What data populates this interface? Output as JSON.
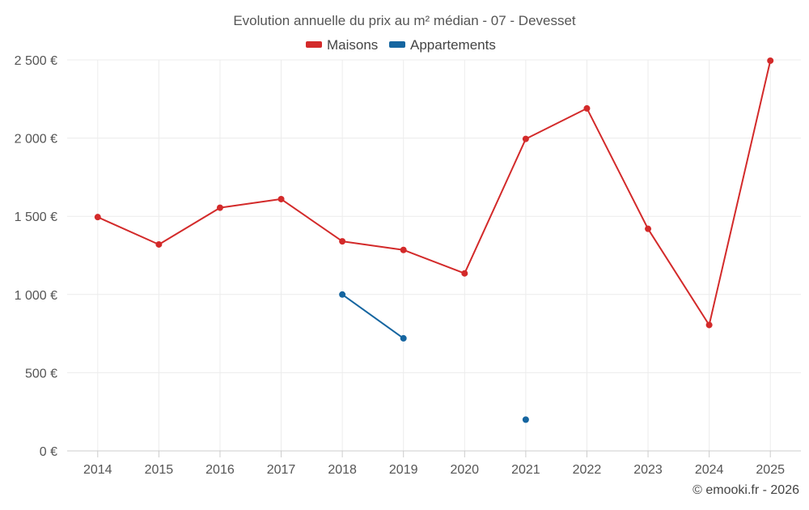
{
  "chart_data": {
    "type": "line",
    "title": "Evolution annuelle du prix au m² médian - 07 - Devesset",
    "categories": [
      "2014",
      "2015",
      "2016",
      "2017",
      "2018",
      "2019",
      "2020",
      "2021",
      "2022",
      "2023",
      "2024",
      "2025"
    ],
    "series": [
      {
        "name": "Maisons",
        "color": "#d32a2a",
        "values": [
          1495,
          1320,
          1555,
          1610,
          1340,
          1285,
          1135,
          1995,
          2190,
          1420,
          805,
          2495
        ]
      },
      {
        "name": "Appartements",
        "color": "#1565a0",
        "values": [
          null,
          null,
          null,
          null,
          1000,
          720,
          null,
          200,
          null,
          null,
          null,
          null
        ]
      }
    ],
    "y_ticks": [
      "0 €",
      "500 €",
      "1 000 €",
      "1 500 €",
      "2 000 €",
      "2 500 €"
    ],
    "ylim": [
      0,
      2500
    ],
    "y_tick_step": 500,
    "grid": true,
    "legend_position": "top-center",
    "xlabel": "",
    "ylabel": ""
  },
  "credits": "© emooki.fr - 2026"
}
